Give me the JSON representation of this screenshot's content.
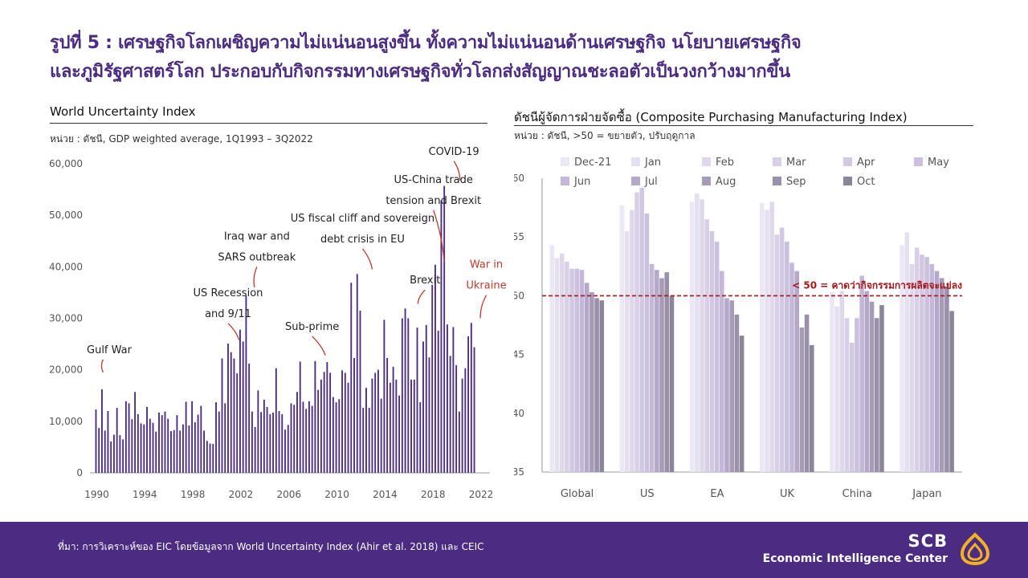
{
  "header": {
    "title_line1": "รูปที่ 5 : เศรษฐกิจโลกเผชิญความไม่แน่นอนสูงขึ้น ทั้งความไม่แน่นอนด้านเศรษฐกิจ นโยบายเศรษฐกิจ",
    "title_line2": "และภูมิรัฐศาสตร์โลก ประกอบกับกิจกรรมทางเศรษฐกิจทั่วโลกส่งสัญญาณชะลอตัวเป็นวงกว้างมากขึ้น"
  },
  "colors": {
    "accent": "#4b2c82",
    "bar": "#4b2c82",
    "annotation_line": "#c0392b",
    "threshold": "#a8151a"
  },
  "chart_data": [
    {
      "type": "bar",
      "title": "World Uncertainty Index",
      "subtitle": "หน่วย : ดัชนี, GDP weighted average, 1Q1993 – 3Q2022",
      "ylim": [
        0,
        60000
      ],
      "yticks": [
        "0",
        "10,000",
        "20,000",
        "30,000",
        "40,000",
        "50,000",
        "60,000"
      ],
      "xticks": [
        "1990",
        "1994",
        "1998",
        "2002",
        "2006",
        "2010",
        "2014",
        "2018",
        "2022"
      ],
      "xlim": [
        1989.5,
        2022.8
      ],
      "x_start": 1990.0,
      "x_step": 0.25,
      "values": [
        12300,
        8700,
        16200,
        8200,
        12000,
        6100,
        7400,
        12600,
        7300,
        6500,
        13900,
        13500,
        10400,
        15700,
        11400,
        9600,
        9400,
        12800,
        10500,
        9700,
        8000,
        11700,
        11200,
        11900,
        10500,
        8100,
        8300,
        11200,
        8200,
        9400,
        13800,
        9200,
        13900,
        9800,
        11300,
        13000,
        8200,
        6200,
        5700,
        5600,
        13700,
        11900,
        22200,
        13500,
        25100,
        23400,
        22200,
        19300,
        27800,
        25500,
        34400,
        21200,
        11900,
        8900,
        16000,
        11800,
        14200,
        12800,
        11400,
        11700,
        20300,
        12000,
        11400,
        8400,
        9300,
        13500,
        13200,
        15700,
        21600,
        13800,
        12400,
        13900,
        13000,
        21700,
        16100,
        18100,
        19600,
        21500,
        19400,
        14700,
        13700,
        14300,
        19900,
        19400,
        17500,
        36900,
        22300,
        38600,
        31500,
        12600,
        16500,
        12600,
        18300,
        19400,
        20000,
        14400,
        29700,
        22300,
        17500,
        20600,
        18100,
        15000,
        30000,
        31900,
        30000,
        18100,
        18100,
        28200,
        13700,
        25500,
        28700,
        22400,
        36500,
        40400,
        27600,
        52900,
        55700,
        28800,
        22700,
        28300,
        20900,
        11900,
        18300,
        20300,
        26500,
        29100,
        24400
      ],
      "annotations": [
        {
          "text": [
            "Gulf War"
          ],
          "line": [
            1990.6,
            19500,
            1990.6,
            22000
          ]
        },
        {
          "text": [
            "US Recession",
            "and 9/11"
          ],
          "line": [
            2001.9,
            25800,
            2001.0,
            29000
          ]
        },
        {
          "text": [
            "Iraq war and",
            "SARS outbreak"
          ],
          "line": [
            2003.2,
            36000,
            2003.4,
            40000
          ]
        },
        {
          "text": [
            "Sub-prime"
          ],
          "line": [
            2009.1,
            22800,
            2008.0,
            26500
          ]
        },
        {
          "text": [
            "US fiscal cliff and sovereign",
            "debt crisis in EU"
          ],
          "line": [
            2013.0,
            39500,
            2012.2,
            43500
          ]
        },
        {
          "text": [
            "Brexit"
          ],
          "line": [
            2016.8,
            32800,
            2017.4,
            35500
          ]
        },
        {
          "text": [
            "US-China trade",
            "tension and Brexit"
          ],
          "line": [
            2019.0,
            41000,
            2018.1,
            51000
          ]
        },
        {
          "text": [
            "COVID-19"
          ],
          "line": [
            2020.3,
            56800,
            2019.8,
            60500
          ]
        },
        {
          "text": [
            "War in",
            "Ukraine"
          ],
          "line": [
            2022.0,
            30000,
            2022.5,
            34500
          ],
          "highlight": true
        }
      ]
    },
    {
      "type": "bar",
      "title": "ดัชนีผู้จัดการฝ่ายจัดซื้อ (Composite Purchasing Manufacturing Index)",
      "subtitle": "หน่วย : ดัชนี, >50 = ขยายตัว, ปรับฤดูกาล",
      "ylim": [
        35,
        60
      ],
      "yticks": [
        "35",
        "40",
        "45",
        "50",
        "55",
        "60"
      ],
      "categories": [
        "Global",
        "US",
        "EA",
        "UK",
        "China",
        "Japan"
      ],
      "series": [
        {
          "name": "Dec-21",
          "color": "#ebe7f3",
          "values": [
            54.3,
            57.7,
            58.0,
            57.9,
            50.3,
            54.3
          ]
        },
        {
          "name": "Jan",
          "color": "#e5e0ef",
          "values": [
            53.2,
            55.5,
            58.7,
            57.3,
            49.1,
            55.4
          ]
        },
        {
          "name": "Feb",
          "color": "#dfd8eb",
          "values": [
            53.6,
            57.3,
            58.2,
            58.0,
            50.4,
            52.7
          ]
        },
        {
          "name": "Mar",
          "color": "#d9d0e7",
          "values": [
            52.9,
            58.8,
            56.5,
            55.2,
            48.1,
            54.1
          ]
        },
        {
          "name": "Apr",
          "color": "#d2c8e2",
          "values": [
            52.3,
            59.2,
            55.5,
            55.8,
            46.0,
            53.5
          ]
        },
        {
          "name": "May",
          "color": "#cbc0dd",
          "values": [
            52.3,
            57.0,
            54.6,
            54.6,
            48.1,
            53.3
          ]
        },
        {
          "name": "Jun",
          "color": "#c5b7d8",
          "values": [
            52.2,
            52.7,
            52.1,
            52.8,
            51.7,
            52.7
          ]
        },
        {
          "name": "Jul",
          "color": "#b5a8c8",
          "values": [
            51.1,
            52.2,
            49.8,
            52.1,
            50.4,
            52.1
          ]
        },
        {
          "name": "Aug",
          "color": "#a79bb8",
          "values": [
            50.3,
            51.5,
            49.6,
            47.3,
            49.5,
            51.5
          ]
        },
        {
          "name": "Sep",
          "color": "#9a90a9",
          "values": [
            49.8,
            52.0,
            48.4,
            48.4,
            48.1,
            50.8
          ]
        },
        {
          "name": "Oct",
          "color": "#8c8499",
          "values": [
            49.6,
            50.0,
            46.6,
            45.8,
            49.2,
            48.7
          ]
        }
      ],
      "threshold": {
        "value": 50,
        "label": "< 50 = คาดว่ากิจกรรมการผลิตจะแย่ลง"
      }
    }
  ],
  "footer": {
    "source": "ที่มา: การวิเคราะห์ของ EIC โดยข้อมูลจาก World Uncertainty Index (Ahir et al. 2018) และ CEIC",
    "brand_line1": "SCB",
    "brand_line2": "Economic Intelligence Center"
  }
}
